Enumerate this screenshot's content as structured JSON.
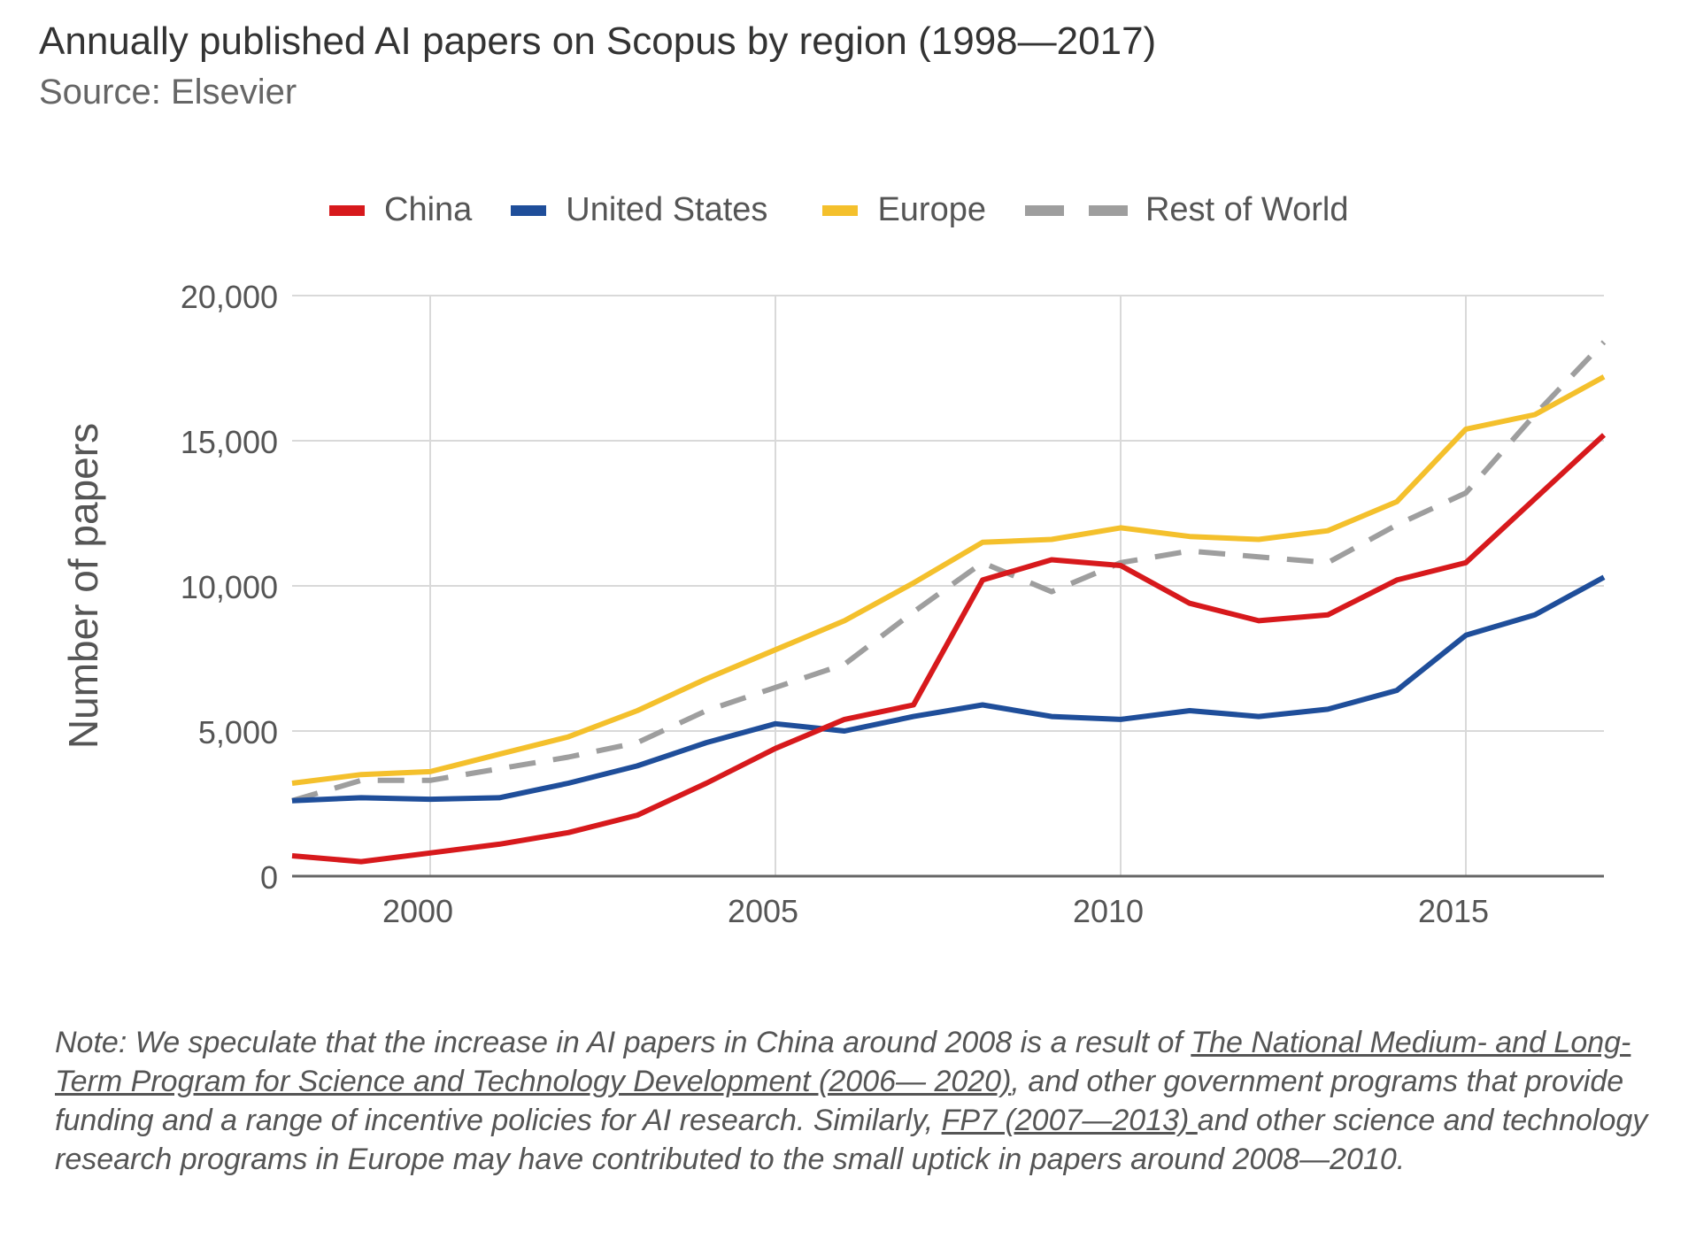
{
  "header": {
    "title": "Annually published AI papers on Scopus by region (1998—2017)",
    "subtitle": "Source: Elsevier"
  },
  "note": {
    "prefix": "Note: We speculate that the increase in AI papers in China around 2008 is a result of ",
    "link1": "The National Medium- and Long-Term Program for Science and Technology Development (2006— 2020)",
    "middle": ", and other government programs that provide funding and a range of incentive policies for AI research. Similarly, ",
    "link2": "FP7 (2007—2013) ",
    "suffix": "and other science and technology research programs in Europe may have contributed to the small uptick in papers around 2008—2010."
  },
  "colors": {
    "china": "#d7191c",
    "united_states": "#1f4e9a",
    "europe": "#f4c02c",
    "rest_of_world": "#9e9e9e",
    "grid": "#d9d9d9",
    "axis": "#666666"
  },
  "chart_data": {
    "type": "line",
    "title": "Annually published AI papers on Scopus by region (1998—2017)",
    "ylabel": "Number of papers",
    "xlabel": "",
    "x": [
      1998,
      1999,
      2000,
      2001,
      2002,
      2003,
      2004,
      2005,
      2006,
      2007,
      2008,
      2009,
      2010,
      2011,
      2012,
      2013,
      2014,
      2015,
      2016,
      2017
    ],
    "xlim": [
      1998,
      2017
    ],
    "ylim": [
      0,
      20000
    ],
    "x_ticks": [
      2000,
      2005,
      2010,
      2015
    ],
    "x_tick_labels": [
      "2000",
      "2005",
      "2010",
      "2015"
    ],
    "y_ticks": [
      0,
      5000,
      10000,
      15000,
      20000
    ],
    "y_tick_labels": [
      "0",
      "5,000",
      "10,000",
      "15,000",
      "20,000"
    ],
    "grid": true,
    "legend_position": "top",
    "series": [
      {
        "name": "China",
        "color": "#d7191c",
        "dash": "solid",
        "values": [
          700,
          500,
          800,
          1100,
          1500,
          2100,
          3200,
          4400,
          5400,
          5900,
          10200,
          10900,
          10700,
          9400,
          8800,
          9000,
          10200,
          10800,
          13000,
          15200
        ]
      },
      {
        "name": "United States",
        "color": "#1f4e9a",
        "dash": "solid",
        "values": [
          2600,
          2700,
          2650,
          2700,
          3200,
          3800,
          4600,
          5250,
          5000,
          5500,
          5900,
          5500,
          5400,
          5700,
          5500,
          5750,
          6400,
          8300,
          9000,
          10300
        ]
      },
      {
        "name": "Europe",
        "color": "#f4c02c",
        "dash": "solid",
        "values": [
          3200,
          3500,
          3600,
          4200,
          4800,
          5700,
          6800,
          7800,
          8800,
          10100,
          11500,
          11600,
          12000,
          11700,
          11600,
          11900,
          12900,
          15400,
          15900,
          17200
        ]
      },
      {
        "name": "Rest of World",
        "color": "#9e9e9e",
        "dash": "dashed",
        "values": [
          2600,
          3300,
          3300,
          3700,
          4100,
          4600,
          5700,
          6500,
          7300,
          9100,
          10800,
          9800,
          10800,
          11200,
          11000,
          10800,
          12100,
          13200,
          15900,
          18400
        ]
      }
    ]
  }
}
